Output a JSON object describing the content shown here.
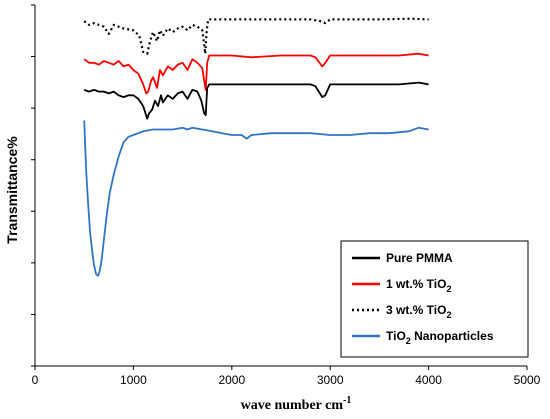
{
  "chart_data": {
    "type": "line",
    "xlabel_main": "wave number cm",
    "xlabel_sup": "-1",
    "ylabel": "Transmittance%",
    "xlim": [
      0,
      5000
    ],
    "xticks": [
      "0",
      "1000",
      "2000",
      "3000",
      "4000",
      "5000"
    ],
    "grid": false,
    "legend_position": "bottom-right",
    "legend": [
      {
        "main": "Pure PMMA",
        "sub": "",
        "tail": "",
        "color": "#000000",
        "dash": "solid"
      },
      {
        "main": "1 wt.% TiO",
        "sub": "2",
        "tail": "",
        "color": "#ff0000",
        "dash": "solid"
      },
      {
        "main": "3 wt.% TiO",
        "sub": "2",
        "tail": "",
        "color": "#000000",
        "dash": "dotted"
      },
      {
        "main": "TiO",
        "sub": "2",
        "tail": " Nanoparticles",
        "color": "#2e75c9",
        "dash": "solid"
      }
    ],
    "series": [
      {
        "name": "3 wt.% TiO2",
        "color": "#000000",
        "dash": "dotted",
        "x": [
          500,
          550,
          600,
          700,
          750,
          800,
          900,
          1000,
          1060,
          1100,
          1140,
          1170,
          1200,
          1240,
          1270,
          1300,
          1350,
          1400,
          1450,
          1500,
          1550,
          1600,
          1650,
          1700,
          1720,
          1730,
          1745,
          1760,
          1800,
          2000,
          2200,
          2500,
          2800,
          2900,
          2950,
          3000,
          3200,
          3500,
          3800,
          4000
        ],
        "y": [
          95.5,
          94.5,
          95,
          94,
          92,
          94.5,
          93.5,
          93,
          91.5,
          87,
          86.5,
          90,
          92.5,
          90,
          93,
          91.5,
          93.5,
          92.5,
          93.5,
          94,
          93,
          94.5,
          94,
          93,
          89,
          86.5,
          93,
          96,
          96,
          96,
          96,
          96,
          96,
          95.5,
          95,
          96,
          96,
          96,
          96.2,
          96
        ]
      },
      {
        "name": "1 wt.% TiO2",
        "color": "#ff0000",
        "dash": "solid",
        "x": [
          500,
          550,
          600,
          650,
          700,
          750,
          800,
          850,
          900,
          950,
          1000,
          1050,
          1100,
          1130,
          1150,
          1180,
          1200,
          1240,
          1270,
          1300,
          1350,
          1400,
          1450,
          1500,
          1550,
          1600,
          1650,
          1700,
          1720,
          1735,
          1750,
          1770,
          1800,
          2000,
          2200,
          2500,
          2800,
          2850,
          2920,
          2950,
          3000,
          3100,
          3300,
          3500,
          3700,
          3900,
          4000
        ],
        "y": [
          85,
          84,
          84,
          83.5,
          84.5,
          84,
          83.5,
          84.5,
          83,
          83.5,
          82,
          81,
          78,
          75.5,
          76,
          79,
          80,
          77,
          82,
          80.5,
          83,
          82,
          83.5,
          84,
          82,
          85,
          84,
          82.5,
          79,
          76.5,
          84,
          86,
          86,
          86,
          85.5,
          86,
          86,
          85.5,
          83,
          84,
          86,
          86,
          86,
          86,
          86,
          86.5,
          86
        ]
      },
      {
        "name": "Pure PMMA",
        "color": "#000000",
        "dash": "solid",
        "x": [
          500,
          550,
          600,
          650,
          700,
          750,
          800,
          850,
          900,
          950,
          1000,
          1050,
          1100,
          1140,
          1160,
          1190,
          1220,
          1250,
          1280,
          1300,
          1350,
          1400,
          1450,
          1500,
          1550,
          1600,
          1650,
          1690,
          1720,
          1735,
          1750,
          1770,
          1800,
          2000,
          2200,
          2500,
          2800,
          2850,
          2920,
          2950,
          3000,
          3200,
          3500,
          3700,
          3900,
          4000
        ],
        "y": [
          76.5,
          76,
          76.5,
          76,
          76,
          75.5,
          76,
          75,
          74.5,
          75,
          75,
          74,
          72,
          68.5,
          70,
          71,
          73.5,
          72,
          75,
          73,
          75,
          74,
          75.5,
          76,
          74,
          76.5,
          76,
          73.5,
          70,
          69.5,
          77,
          78,
          78,
          78,
          78,
          78,
          78,
          77.5,
          74.5,
          75,
          78,
          78,
          78,
          78,
          78.5,
          78
        ]
      },
      {
        "name": "TiO2 Nanoparticles",
        "color": "#2e75c9",
        "dash": "solid",
        "x": [
          500,
          520,
          540,
          560,
          580,
          600,
          620,
          640,
          660,
          680,
          700,
          730,
          760,
          800,
          850,
          900,
          950,
          1000,
          1100,
          1200,
          1300,
          1400,
          1500,
          1550,
          1600,
          1700,
          1800,
          1900,
          2000,
          2100,
          2150,
          2200,
          2400,
          2600,
          2800,
          3000,
          3200,
          3400,
          3600,
          3800,
          3900,
          4000
        ],
        "y": [
          68,
          54,
          45,
          37,
          32,
          28,
          25.5,
          25,
          26.5,
          30,
          35,
          42,
          48,
          53,
          58,
          62,
          63.5,
          64,
          65,
          65.5,
          65.5,
          65.5,
          66,
          65.5,
          66,
          65.5,
          65,
          64.5,
          64,
          64,
          63,
          64,
          64.5,
          64.5,
          64.5,
          64,
          64,
          64.5,
          64.5,
          65,
          66,
          65.5
        ]
      }
    ]
  }
}
